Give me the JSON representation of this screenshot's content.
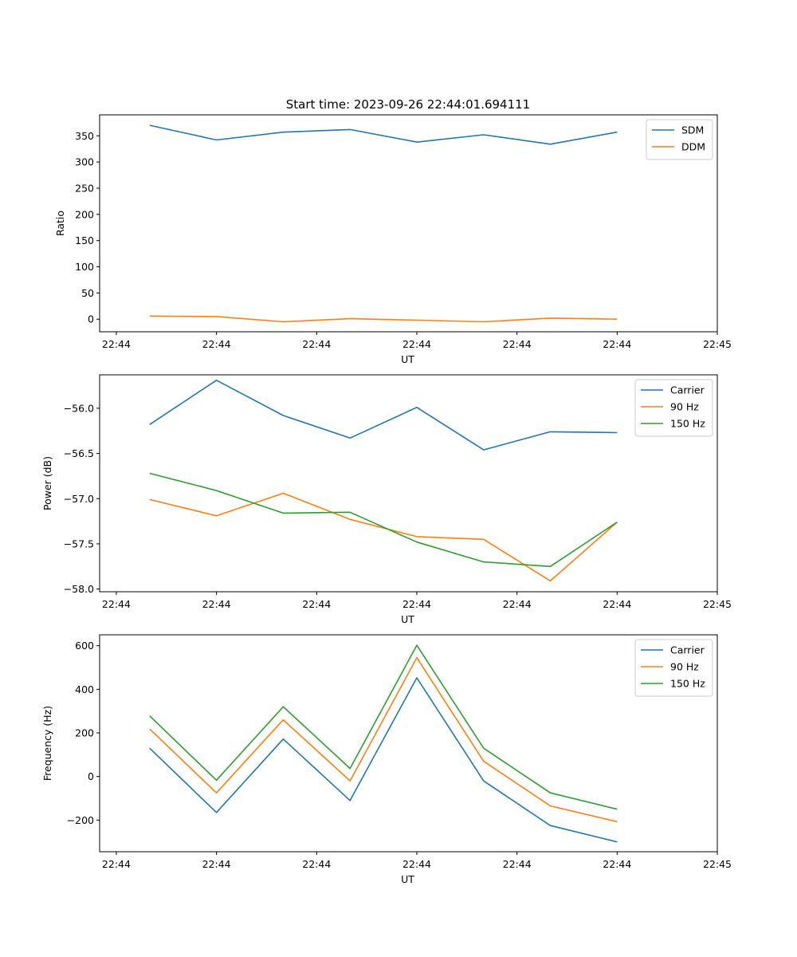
{
  "figure_title": "Start time: 2023-09-26 22:44:01.694111",
  "colors": {
    "blue": "#1f77b4",
    "orange": "#ff7f0e",
    "green": "#2ca02c"
  },
  "chart_data": [
    {
      "type": "line",
      "id": "ratio",
      "title": "Start time: 2023-09-26 22:44:01.694111",
      "xlabel": "UT",
      "ylabel": "Ratio",
      "xticks": [
        "22:44",
        "22:44",
        "22:44",
        "22:44",
        "22:44",
        "22:44",
        "22:45"
      ],
      "xlim": [
        -0.25,
        9.0
      ],
      "x": [
        0.5,
        1.5,
        2.5,
        3.5,
        4.5,
        5.5,
        6.5,
        7.5
      ],
      "ylim": [
        -24,
        390
      ],
      "yticks": [
        0,
        50,
        100,
        150,
        200,
        250,
        300,
        350
      ],
      "legend_loc": "upper right",
      "series": [
        {
          "name": "SDM",
          "color": "#1f77b4",
          "values": [
            370,
            342,
            357,
            362,
            338,
            352,
            334,
            357
          ]
        },
        {
          "name": "DDM",
          "color": "#ff7f0e",
          "values": [
            6,
            5,
            -5,
            1,
            -2,
            -5,
            2,
            0
          ]
        }
      ]
    },
    {
      "type": "line",
      "id": "power",
      "title": "",
      "xlabel": "UT",
      "ylabel": "Power (dB)",
      "xticks": [
        "22:44",
        "22:44",
        "22:44",
        "22:44",
        "22:44",
        "22:44",
        "22:45"
      ],
      "xlim": [
        -0.25,
        9.0
      ],
      "x": [
        0.5,
        1.5,
        2.5,
        3.5,
        4.5,
        5.5,
        6.5,
        7.5
      ],
      "ylim": [
        -58.03,
        -55.63
      ],
      "yticks": [
        -58.0,
        -57.5,
        -57.0,
        -56.5,
        -56.0
      ],
      "legend_loc": "upper right",
      "series": [
        {
          "name": "Carrier",
          "color": "#1f77b4",
          "values": [
            -56.18,
            -55.69,
            -56.08,
            -56.33,
            -55.99,
            -56.46,
            -56.26,
            -56.27
          ]
        },
        {
          "name": "90 Hz",
          "color": "#ff7f0e",
          "values": [
            -57.01,
            -57.19,
            -56.94,
            -57.23,
            -57.42,
            -57.45,
            -57.91,
            -57.26
          ]
        },
        {
          "name": "150 Hz",
          "color": "#2ca02c",
          "values": [
            -56.72,
            -56.91,
            -57.16,
            -57.15,
            -57.48,
            -57.7,
            -57.75,
            -57.26
          ]
        }
      ]
    },
    {
      "type": "line",
      "id": "frequency",
      "title": "",
      "xlabel": "UT",
      "ylabel": "Frequency (Hz)",
      "xticks": [
        "22:44",
        "22:44",
        "22:44",
        "22:44",
        "22:44",
        "22:44",
        "22:45"
      ],
      "xlim": [
        -0.25,
        9.0
      ],
      "x": [
        0.5,
        1.5,
        2.5,
        3.5,
        4.5,
        5.5,
        6.5,
        7.5
      ],
      "ylim": [
        -345,
        650
      ],
      "yticks": [
        -200,
        0,
        200,
        400,
        600
      ],
      "legend_loc": "upper right",
      "series": [
        {
          "name": "Carrier",
          "color": "#1f77b4",
          "values": [
            130,
            -165,
            172,
            -110,
            453,
            -20,
            -225,
            -300
          ]
        },
        {
          "name": "90 Hz",
          "color": "#ff7f0e",
          "values": [
            218,
            -75,
            260,
            -20,
            545,
            70,
            -135,
            -207
          ]
        },
        {
          "name": "150 Hz",
          "color": "#2ca02c",
          "values": [
            278,
            -17,
            320,
            37,
            602,
            130,
            -75,
            -150
          ]
        }
      ]
    }
  ]
}
